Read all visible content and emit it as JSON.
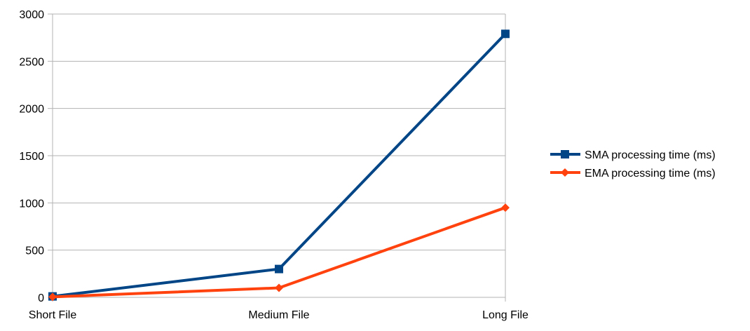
{
  "chart_data": {
    "type": "line",
    "categories": [
      "Short File",
      "Medium File",
      "Long File"
    ],
    "yticks": [
      "0",
      "500",
      "1000",
      "1500",
      "2000",
      "2500",
      "3000"
    ],
    "ylim": [
      0,
      3000
    ],
    "grid": "horizontal",
    "legend_position": "right",
    "series": [
      {
        "name": "SMA processing time (ms)",
        "color": "#004586",
        "marker": "square",
        "values": [
          10,
          300,
          2790
        ]
      },
      {
        "name": "EMA processing time (ms)",
        "color": "#ff420e",
        "marker": "diamond",
        "values": [
          5,
          100,
          950
        ]
      }
    ]
  }
}
